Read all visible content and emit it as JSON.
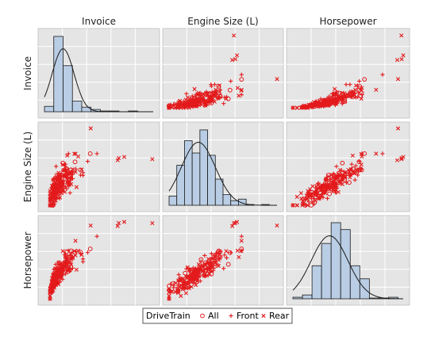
{
  "chart_data": {
    "type": "scatter",
    "variables": [
      "Invoice",
      "Engine Size (L)",
      "Horsepower"
    ],
    "ranges": [
      [
        0,
        175000
      ],
      [
        1.3,
        8.3
      ],
      [
        73,
        500
      ]
    ],
    "histograms": [
      {
        "variable": "Invoice",
        "bins": [
          0,
          15000,
          30000,
          45000,
          60000,
          75000,
          90000,
          105000,
          120000,
          135000,
          150000,
          165000
        ],
        "density": [
          0.07,
          0.98,
          0.6,
          0.14,
          0.06,
          0.03,
          0.01,
          0.01,
          0.0,
          0.01,
          0.0
        ]
      },
      {
        "variable": "Engine Size (L)",
        "bins": [
          1.3,
          1.8,
          2.3,
          2.8,
          3.3,
          3.8,
          4.3,
          4.8,
          5.3,
          5.8,
          6.3,
          6.8,
          7.3,
          7.8,
          8.3
        ],
        "density": [
          0.12,
          0.52,
          0.84,
          0.68,
          0.98,
          0.65,
          0.34,
          0.14,
          0.06,
          0.08,
          0.01,
          0.0,
          0.01,
          0.0
        ]
      },
      {
        "variable": "Horsepower",
        "bins": [
          73,
          110,
          147,
          184,
          221,
          258,
          295,
          332,
          369,
          406,
          443,
          480
        ],
        "density": [
          0.02,
          0.05,
          0.43,
          0.72,
          0.99,
          0.9,
          0.43,
          0.26,
          0.01,
          0.01,
          0.02
        ]
      }
    ],
    "normal_curves": [
      {
        "variable": "Invoice",
        "mean": 30000,
        "sd": 17600
      },
      {
        "variable": "Engine Size (L)",
        "mean": 3.2,
        "sd": 1.1
      },
      {
        "variable": "Horsepower",
        "mean": 215,
        "sd": 71
      }
    ],
    "groups": [
      {
        "name": "All",
        "marker": "circle",
        "color": "#e31a1c"
      },
      {
        "name": "Front",
        "marker": "plus",
        "color": "#e31a1c"
      },
      {
        "name": "Rear",
        "marker": "cross",
        "color": "#e31a1c"
      }
    ],
    "outliers": [
      {
        "group": "Rear",
        "Invoice": 173560,
        "Engine Size (L)": 5.5,
        "Horsepower": 493
      },
      {
        "group": "Rear",
        "Invoice": 128420,
        "Engine Size (L)": 5.7,
        "Horsepower": 500
      },
      {
        "group": "Rear",
        "Invoice": 119600,
        "Engine Size (L)": 5.6,
        "Horsepower": 494
      },
      {
        "group": "Rear",
        "Invoice": 74451,
        "Engine Size (L)": 8.3,
        "Horsepower": 480
      },
      {
        "group": "Rear",
        "Invoice": 117854,
        "Engine Size (L)": 5.4,
        "Horsepower": 477
      },
      {
        "group": "Front",
        "Invoice": 84500,
        "Engine Size (L)": 6.0,
        "Horsepower": 420
      },
      {
        "group": "Rear",
        "Invoice": 50000,
        "Engine Size (L)": 6.0,
        "Horsepower": 395
      },
      {
        "group": "Front",
        "Invoice": 69600,
        "Engine Size (L)": 5.3,
        "Horsepower": 330
      },
      {
        "group": "All",
        "Invoice": 73700,
        "Engine Size (L)": 6.0,
        "Horsepower": 350
      }
    ],
    "legend_title": "DriveTrain",
    "legend": [
      "All",
      "Front",
      "Rear"
    ],
    "legend_position": "bottom",
    "grid": true
  }
}
